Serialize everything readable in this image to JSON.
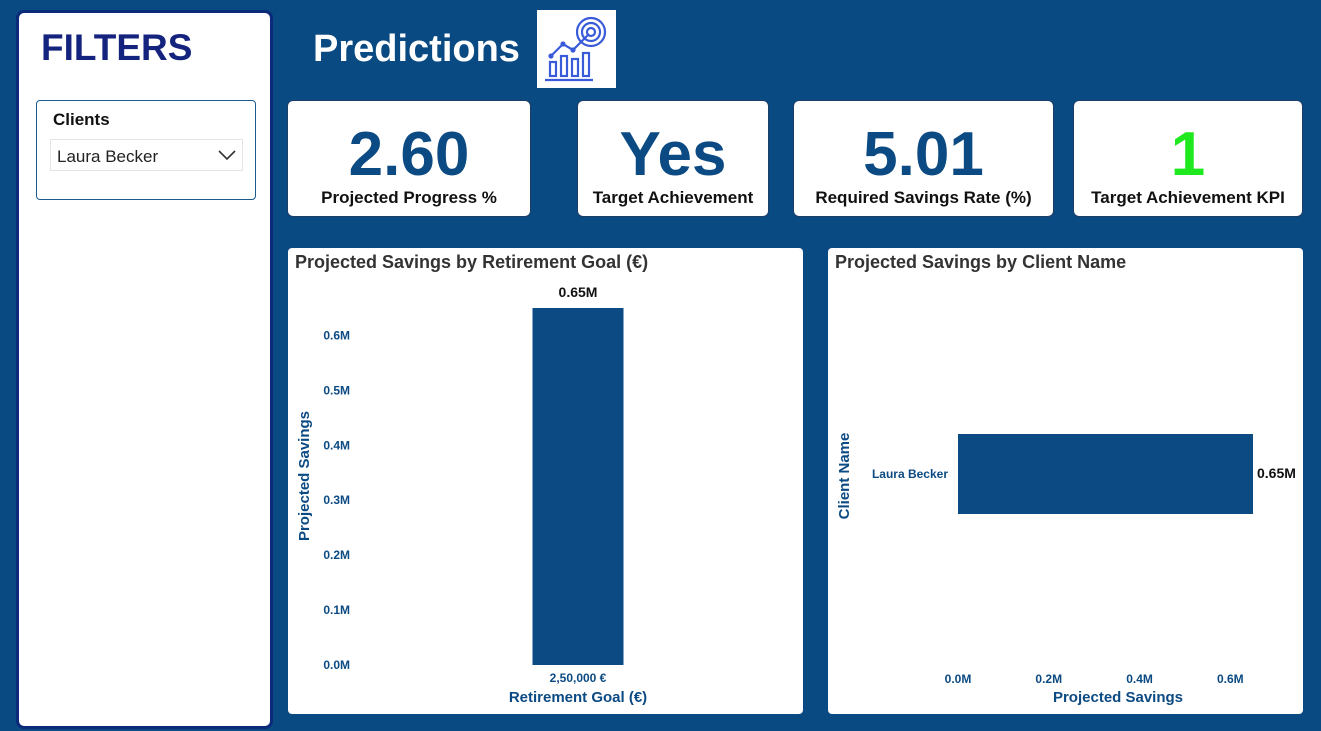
{
  "filters": {
    "title": "FILTERS",
    "slicer": {
      "label": "Clients",
      "selected": "Laura Becker"
    }
  },
  "header": {
    "title": "Predictions",
    "icon": "analytics-chart-icon"
  },
  "kpis": [
    {
      "value": "2.60",
      "label": "Projected Progress %",
      "color": "#0b4a82"
    },
    {
      "value": "Yes",
      "label": "Target Achievement",
      "color": "#0b4a82"
    },
    {
      "value": "5.01",
      "label": "Required Savings Rate (%)",
      "color": "#0b4a82"
    },
    {
      "value": "1",
      "label": "Target Achievement KPI",
      "color": "#1ee81e"
    }
  ],
  "chart_data": [
    {
      "type": "bar",
      "title": "Projected Savings by Retirement Goal (€)",
      "xlabel": "Retirement Goal (€)",
      "ylabel": "Projected Savings",
      "categories": [
        "2,50,000 €"
      ],
      "values": [
        0.65
      ],
      "data_labels": [
        "0.65M"
      ],
      "ylim": [
        0,
        0.65
      ],
      "yticks": [
        0,
        0.1,
        0.2,
        0.3,
        0.4,
        0.5,
        0.6
      ],
      "ytick_labels": [
        "0.0M",
        "0.1M",
        "0.2M",
        "0.3M",
        "0.4M",
        "0.5M",
        "0.6M"
      ],
      "grid": false,
      "bar_color": "#0b4a82"
    },
    {
      "type": "bar",
      "orientation": "horizontal",
      "title": "Projected Savings by Client Name",
      "xlabel": "Projected Savings",
      "ylabel": "Client Name",
      "categories": [
        "Laura Becker"
      ],
      "values": [
        0.65
      ],
      "data_labels": [
        "0.65M"
      ],
      "xlim": [
        0,
        0.65
      ],
      "xticks": [
        0,
        0.2,
        0.4,
        0.6
      ],
      "xtick_labels": [
        "0.0M",
        "0.2M",
        "0.4M",
        "0.6M"
      ],
      "grid": false,
      "bar_color": "#0b4a82"
    }
  ]
}
